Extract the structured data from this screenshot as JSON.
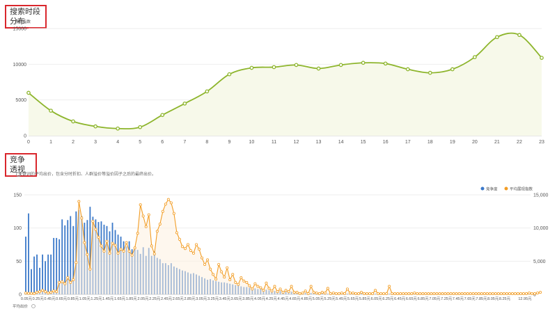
{
  "section1": {
    "title": "搜索时段分布"
  },
  "section2": {
    "title": "竞争透视",
    "note": "关键词的平均出价，包含分时折扣、人群溢价等溢价因子之后的最终出价。"
  },
  "chart_data": [
    {
      "type": "area",
      "title": "搜索时段分布",
      "ylabel": "展现指数",
      "xlabel": "",
      "ylim": [
        0,
        15000
      ],
      "yticks": [
        0,
        5000,
        10000,
        15000
      ],
      "x": [
        0,
        1,
        2,
        3,
        4,
        5,
        6,
        7,
        8,
        9,
        10,
        11,
        12,
        13,
        14,
        15,
        16,
        17,
        18,
        19,
        20,
        21,
        22,
        23
      ],
      "values": [
        6000,
        3500,
        2000,
        1300,
        1000,
        1200,
        2900,
        4500,
        6200,
        8600,
        9500,
        9600,
        9900,
        9400,
        9900,
        10200,
        10100,
        9300,
        8800,
        9300,
        11000,
        13800,
        14100,
        10900
      ],
      "grid": true,
      "color": "#8db52c"
    },
    {
      "type": "bar",
      "title": "竞争透视",
      "xlabel": "平均出价",
      "legend": [
        "竞争度",
        "平均展现指数"
      ],
      "legend_position": "top-right",
      "x_tick_labels": [
        "0.05元",
        "0.25元",
        "0.45元",
        "0.65元",
        "0.85元",
        "1.05元",
        "1.25元",
        "1.45元",
        "1.65元",
        "1.85元",
        "2.05元",
        "2.25元",
        "2.45元",
        "2.65元",
        "2.85元",
        "3.05元",
        "3.25元",
        "3.45元",
        "3.65元",
        "3.85元",
        "4.05元",
        "4.25元",
        "4.45元",
        "4.65元",
        "4.85元",
        "5.05元",
        "5.25元",
        "5.45元",
        "5.65元",
        "5.85元",
        "6.05元",
        "6.25元",
        "6.45元",
        "6.65元",
        "6.85元",
        "7.05元",
        "7.25元",
        "7.45元",
        "7.65元",
        "7.85元",
        "8.05元",
        "8.25元",
        "12.95元"
      ],
      "left_axis": {
        "ylim": [
          0,
          150
        ],
        "yticks": [
          0,
          50,
          100,
          150
        ],
        "color": "#3a78c9"
      },
      "right_axis": {
        "ylim": [
          0,
          15000
        ],
        "yticks": [
          "0",
          "5,000",
          "10,000",
          "15,000"
        ],
        "color": "#f29d25"
      },
      "series": [
        {
          "name": "竞争度",
          "type": "bar",
          "color": "#3a78c9",
          "values": [
            87,
            122,
            38,
            57,
            60,
            40,
            60,
            50,
            60,
            60,
            85,
            85,
            83,
            113,
            104,
            112,
            118,
            103,
            125,
            127,
            118,
            108,
            112,
            132,
            117,
            113,
            109,
            110,
            105,
            103,
            95,
            108,
            97,
            90,
            87,
            80,
            72,
            80,
            68,
            68,
            67,
            61,
            71,
            58,
            70,
            58,
            65,
            55,
            53,
            47,
            47,
            44,
            47,
            42,
            40,
            38,
            36,
            35,
            33,
            31,
            32,
            30,
            28,
            26,
            24,
            22,
            23,
            21,
            20,
            19,
            18,
            18,
            17,
            16,
            15,
            14,
            13,
            12,
            11,
            11,
            10,
            9,
            9,
            8,
            8,
            7,
            7,
            6,
            6,
            5,
            5,
            5,
            4,
            4,
            4,
            4,
            3,
            3,
            3,
            3,
            2,
            2,
            2,
            2,
            2,
            2,
            2,
            2,
            1,
            1,
            1,
            1,
            1,
            1,
            1,
            1,
            1,
            1,
            1,
            1,
            1,
            1,
            1,
            1,
            1,
            1,
            1,
            1,
            1,
            1,
            1,
            1,
            1,
            1,
            1,
            1,
            1,
            1,
            1,
            1,
            1,
            1,
            1,
            1,
            1,
            1,
            1,
            1,
            1,
            1,
            1,
            1,
            1,
            1,
            1,
            1,
            1,
            1,
            1,
            1,
            1,
            1,
            1,
            1,
            1,
            1,
            1,
            1,
            1,
            1,
            1,
            1,
            1,
            1,
            1,
            1,
            1,
            1,
            1,
            1,
            1
          ]
        },
        {
          "name": "平均展现指数",
          "type": "line",
          "color": "#f29d25",
          "values": [
            200,
            150,
            150,
            100,
            300,
            400,
            600,
            400,
            200,
            300,
            500,
            400,
            1800,
            1900,
            1600,
            2500,
            1800,
            2200,
            4800,
            14000,
            11500,
            7800,
            6000,
            3800,
            11000,
            9800,
            8600,
            7300,
            6500,
            8000,
            6200,
            7700,
            7400,
            6200,
            6800,
            6500,
            7800,
            6500,
            5900,
            7000,
            9200,
            13500,
            11800,
            10200,
            12000,
            7300,
            6100,
            9500,
            10600,
            12500,
            13600,
            14300,
            13800,
            12200,
            9300,
            8300,
            7200,
            6900,
            7500,
            6600,
            6200,
            7500,
            6800,
            5500,
            4500,
            5200,
            3800,
            3000,
            2300,
            4500,
            3400,
            2600,
            4000,
            2200,
            3000,
            1800,
            1500,
            2500,
            2000,
            1800,
            1300,
            800,
            1600,
            1200,
            1000,
            600,
            1700,
            900,
            500,
            1200,
            400,
            800,
            300,
            600,
            400,
            1200,
            300,
            300,
            100,
            200,
            500,
            100,
            1200,
            300,
            200,
            100,
            300,
            200,
            900,
            100,
            200,
            100,
            100,
            200,
            100,
            800,
            200,
            200,
            100,
            100,
            300,
            100,
            100,
            100,
            100,
            600,
            100,
            100,
            100,
            100,
            1200,
            100,
            100,
            100,
            100,
            100,
            100,
            100,
            100,
            200,
            100,
            100,
            100,
            100,
            100,
            100,
            100,
            100,
            100,
            100,
            100,
            100,
            100,
            100,
            100,
            100,
            100,
            100,
            100,
            100,
            100,
            100,
            100,
            100,
            100,
            100,
            100,
            100,
            100,
            100,
            100,
            100,
            100,
            100,
            100,
            100,
            100,
            100,
            100,
            100,
            200,
            100,
            100,
            200,
            300
          ]
        }
      ]
    }
  ]
}
